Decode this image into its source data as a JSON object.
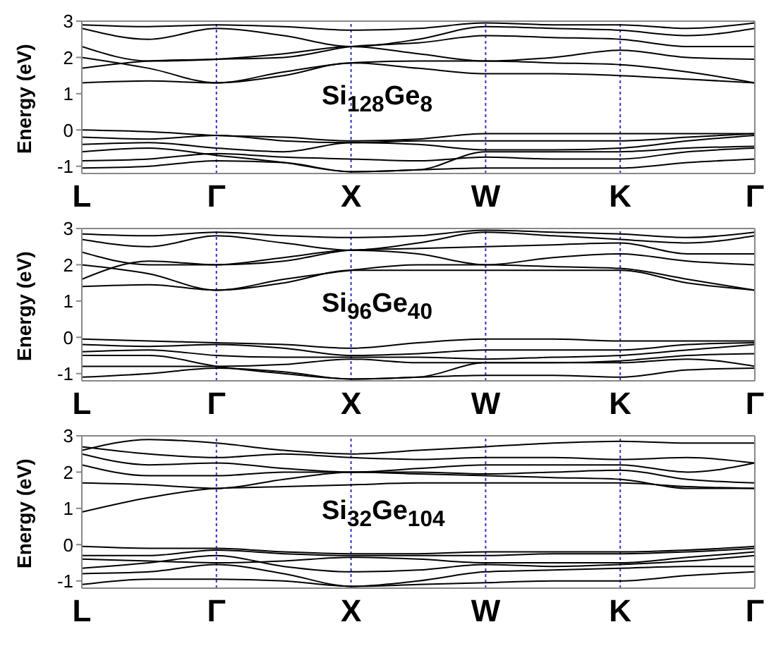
{
  "chart_data": [
    {
      "type": "line",
      "title": "Si$_{128}$Ge$_{8}$",
      "ylabel": "Energy (eV)",
      "categories": [
        "L",
        null,
        "Γ",
        null,
        "X",
        null,
        "W",
        null,
        "K",
        null,
        "Γ"
      ],
      "ylim": [
        -1.2,
        3
      ],
      "yticks": [
        -1,
        0,
        1,
        2,
        3
      ],
      "marker": "none",
      "line_style": "solid",
      "ref_lines": [
        {
          "axis": "x",
          "value": "Γ",
          "color": "#3333cc",
          "line_style": "dotted"
        },
        {
          "axis": "x",
          "value": "X",
          "color": "#3333cc",
          "line_style": "dotted"
        },
        {
          "axis": "x",
          "value": "W",
          "color": "#3333cc",
          "line_style": "dotted"
        },
        {
          "axis": "x",
          "value": "K",
          "color": "#3333cc",
          "line_style": "dotted"
        }
      ],
      "series": [
        {
          "color": "#000000",
          "values": [
            1.3,
            1.35,
            1.3,
            1.5,
            1.85,
            1.7,
            1.55,
            1.55,
            1.5,
            1.4,
            1.3
          ]
        },
        {
          "color": "#000000",
          "values": [
            2.0,
            1.7,
            1.3,
            1.6,
            1.85,
            1.9,
            1.9,
            1.85,
            1.8,
            1.6,
            1.3
          ]
        },
        {
          "color": "#000000",
          "values": [
            2.3,
            1.9,
            1.95,
            2.1,
            2.3,
            2.1,
            1.9,
            2.0,
            2.2,
            2.0,
            1.95
          ]
        },
        {
          "color": "#000000",
          "values": [
            1.7,
            1.9,
            1.95,
            2.0,
            2.3,
            2.4,
            2.6,
            2.55,
            2.5,
            2.3,
            2.3
          ]
        },
        {
          "color": "#000000",
          "values": [
            2.8,
            2.5,
            2.8,
            2.6,
            2.3,
            2.5,
            2.85,
            2.8,
            2.75,
            2.6,
            2.8
          ]
        },
        {
          "color": "#000000",
          "values": [
            2.9,
            2.85,
            2.9,
            2.85,
            2.75,
            2.8,
            2.95,
            2.9,
            2.9,
            2.8,
            2.95
          ]
        },
        {
          "color": "#000000",
          "values": [
            0,
            -0.05,
            -0.15,
            -0.2,
            -0.3,
            -0.25,
            -0.1,
            -0.1,
            -0.1,
            -0.1,
            -0.1
          ]
        },
        {
          "color": "#000000",
          "values": [
            -0.2,
            -0.25,
            -0.15,
            -0.3,
            -0.35,
            -0.3,
            -0.3,
            -0.3,
            -0.3,
            -0.2,
            -0.1
          ]
        },
        {
          "color": "#000000",
          "values": [
            -0.4,
            -0.35,
            -0.5,
            -0.6,
            -0.35,
            -0.4,
            -0.55,
            -0.55,
            -0.5,
            -0.3,
            -0.15
          ]
        },
        {
          "color": "#000000",
          "values": [
            -0.6,
            -0.5,
            -0.7,
            -0.9,
            -1.15,
            -1.1,
            -0.6,
            -0.6,
            -0.6,
            -0.5,
            -0.45
          ]
        },
        {
          "color": "#000000",
          "values": [
            -0.85,
            -0.8,
            -0.65,
            -0.75,
            -0.8,
            -0.85,
            -0.75,
            -0.8,
            -0.8,
            -0.6,
            -0.5
          ]
        },
        {
          "color": "#000000",
          "values": [
            -1.05,
            -1.0,
            -0.85,
            -0.9,
            -1.15,
            -1.1,
            -1.05,
            -1.05,
            -1.05,
            -0.9,
            -0.8
          ]
        }
      ]
    },
    {
      "type": "line",
      "title": "Si$_{96}$Ge$_{40}$",
      "ylabel": "Energy (eV)",
      "categories": [
        "L",
        null,
        "Γ",
        null,
        "X",
        null,
        "W",
        null,
        "K",
        null,
        "Γ"
      ],
      "ylim": [
        -1.2,
        3
      ],
      "yticks": [
        -1,
        0,
        1,
        2,
        3
      ],
      "marker": "none",
      "line_style": "solid",
      "ref_lines": [
        {
          "axis": "x",
          "value": "Γ",
          "color": "#3333cc",
          "line_style": "dotted"
        },
        {
          "axis": "x",
          "value": "X",
          "color": "#3333cc",
          "line_style": "dotted"
        },
        {
          "axis": "x",
          "value": "W",
          "color": "#3333cc",
          "line_style": "dotted"
        },
        {
          "axis": "x",
          "value": "K",
          "color": "#3333cc",
          "line_style": "dotted"
        }
      ],
      "series": [
        {
          "color": "#000000",
          "values": [
            1.4,
            1.45,
            1.3,
            1.5,
            1.85,
            1.85,
            1.85,
            1.85,
            1.85,
            1.5,
            1.3
          ]
        },
        {
          "color": "#000000",
          "values": [
            2.0,
            1.75,
            1.3,
            1.6,
            1.85,
            2.0,
            2.0,
            1.95,
            1.9,
            1.6,
            1.3
          ]
        },
        {
          "color": "#000000",
          "values": [
            2.35,
            2.0,
            2.0,
            2.2,
            2.4,
            2.3,
            2.0,
            2.2,
            2.3,
            2.1,
            2.0
          ]
        },
        {
          "color": "#000000",
          "values": [
            1.6,
            2.1,
            2.0,
            2.1,
            2.4,
            2.45,
            2.5,
            2.55,
            2.6,
            2.3,
            2.3
          ]
        },
        {
          "color": "#000000",
          "values": [
            2.7,
            2.5,
            2.8,
            2.6,
            2.4,
            2.6,
            2.9,
            2.8,
            2.7,
            2.6,
            2.8
          ]
        },
        {
          "color": "#000000",
          "values": [
            2.85,
            2.8,
            2.9,
            2.8,
            2.75,
            2.8,
            2.95,
            2.9,
            2.85,
            2.75,
            2.9
          ]
        },
        {
          "color": "#000000",
          "values": [
            -0.05,
            -0.1,
            -0.15,
            -0.2,
            -0.3,
            -0.15,
            -0.05,
            -0.05,
            -0.1,
            -0.1,
            -0.1
          ]
        },
        {
          "color": "#000000",
          "values": [
            -0.2,
            -0.25,
            -0.2,
            -0.3,
            -0.5,
            -0.45,
            -0.35,
            -0.35,
            -0.35,
            -0.2,
            -0.15
          ]
        },
        {
          "color": "#000000",
          "values": [
            -0.4,
            -0.35,
            -0.5,
            -0.55,
            -0.55,
            -0.55,
            -0.6,
            -0.55,
            -0.5,
            -0.35,
            -0.2
          ]
        },
        {
          "color": "#000000",
          "values": [
            -0.5,
            -0.5,
            -0.8,
            -1.0,
            -1.15,
            -1.1,
            -0.7,
            -0.7,
            -0.65,
            -0.5,
            -0.45
          ]
        },
        {
          "color": "#000000",
          "values": [
            -0.8,
            -0.8,
            -0.8,
            -0.75,
            -0.6,
            -0.7,
            -0.7,
            -0.7,
            -0.7,
            -0.6,
            -0.8
          ]
        },
        {
          "color": "#000000",
          "values": [
            -1.1,
            -1.0,
            -0.85,
            -0.95,
            -1.15,
            -1.1,
            -1.05,
            -1.05,
            -1.1,
            -0.9,
            -0.85
          ]
        }
      ]
    },
    {
      "type": "line",
      "title": "Si$_{32}$Ge$_{104}$",
      "ylabel": "Energy (eV)",
      "categories": [
        "L",
        null,
        "Γ",
        null,
        "X",
        null,
        "W",
        null,
        "K",
        null,
        "Γ"
      ],
      "ylim": [
        -1.2,
        3
      ],
      "yticks": [
        -1,
        0,
        1,
        2,
        3
      ],
      "marker": "none",
      "line_style": "solid",
      "ref_lines": [
        {
          "axis": "x",
          "value": "Γ",
          "color": "#3333cc",
          "line_style": "dotted"
        },
        {
          "axis": "x",
          "value": "X",
          "color": "#3333cc",
          "line_style": "dotted"
        },
        {
          "axis": "x",
          "value": "W",
          "color": "#3333cc",
          "line_style": "dotted"
        },
        {
          "axis": "x",
          "value": "K",
          "color": "#3333cc",
          "line_style": "dotted"
        }
      ],
      "series": [
        {
          "color": "#000000",
          "values": [
            0.9,
            1.3,
            1.55,
            1.6,
            1.65,
            1.7,
            1.7,
            1.7,
            1.7,
            1.6,
            1.55
          ]
        },
        {
          "color": "#000000",
          "values": [
            1.7,
            1.65,
            1.55,
            1.8,
            2.0,
            1.95,
            1.9,
            1.85,
            1.8,
            1.55,
            1.55
          ]
        },
        {
          "color": "#000000",
          "values": [
            2.2,
            1.9,
            1.9,
            2.0,
            2.0,
            2.0,
            1.95,
            2.0,
            2.05,
            1.8,
            1.7
          ]
        },
        {
          "color": "#000000",
          "values": [
            2.5,
            2.2,
            2.25,
            2.1,
            2.0,
            2.1,
            2.2,
            2.2,
            2.2,
            2.0,
            2.25
          ]
        },
        {
          "color": "#000000",
          "values": [
            2.7,
            2.5,
            2.4,
            2.5,
            2.4,
            2.35,
            2.4,
            2.4,
            2.35,
            2.4,
            2.25
          ]
        },
        {
          "color": "#000000",
          "values": [
            2.6,
            2.9,
            2.8,
            2.6,
            2.5,
            2.6,
            2.7,
            2.8,
            2.85,
            2.8,
            2.8
          ]
        },
        {
          "color": "#000000",
          "values": [
            -0.05,
            -0.1,
            -0.1,
            -0.2,
            -0.25,
            -0.25,
            -0.2,
            -0.2,
            -0.2,
            -0.15,
            -0.05
          ]
        },
        {
          "color": "#000000",
          "values": [
            -0.3,
            -0.3,
            -0.15,
            -0.25,
            -0.3,
            -0.3,
            -0.3,
            -0.25,
            -0.25,
            -0.2,
            -0.1
          ]
        },
        {
          "color": "#000000",
          "values": [
            -0.4,
            -0.45,
            -0.5,
            -0.45,
            -0.35,
            -0.4,
            -0.5,
            -0.5,
            -0.5,
            -0.35,
            -0.2
          ]
        },
        {
          "color": "#000000",
          "values": [
            -0.65,
            -0.5,
            -0.3,
            -0.6,
            -0.75,
            -0.7,
            -0.55,
            -0.6,
            -0.55,
            -0.45,
            -0.3
          ]
        },
        {
          "color": "#000000",
          "values": [
            -0.8,
            -0.75,
            -0.55,
            -0.8,
            -1.15,
            -1.0,
            -0.75,
            -0.7,
            -0.65,
            -0.6,
            -0.6
          ]
        },
        {
          "color": "#000000",
          "values": [
            -1.1,
            -0.95,
            -0.95,
            -1.0,
            -1.15,
            -1.1,
            -1.05,
            -1.0,
            -1.0,
            -0.85,
            -0.75
          ]
        }
      ]
    }
  ]
}
